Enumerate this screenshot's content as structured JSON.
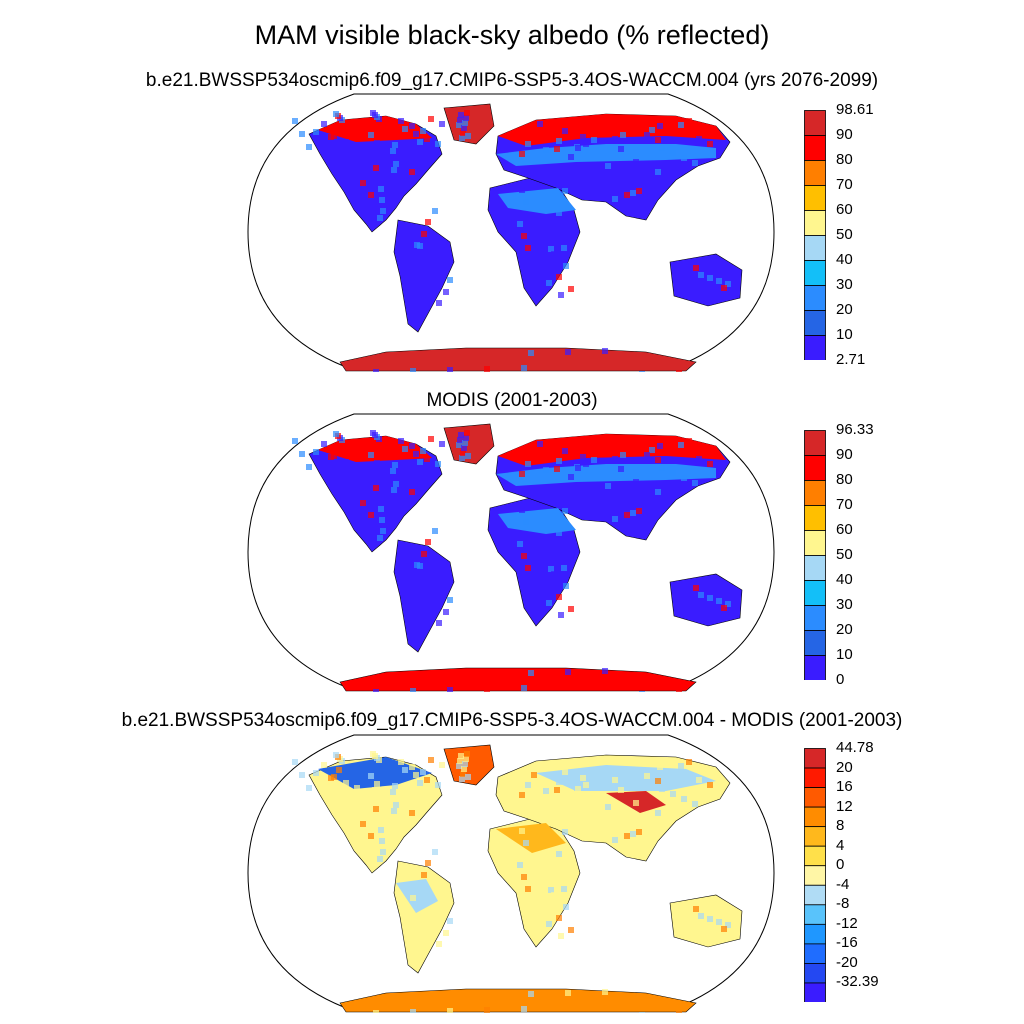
{
  "title": "MAM visible black-sky albedo (% reflected)",
  "panels": [
    {
      "id": "model",
      "subtitle": "b.e21.BWSSP534oscmip6.f09_g17.CMIP6-SSP5-3.4OS-WACCM.004 (yrs 2076-2099)",
      "colorbar": {
        "labels": [
          "98.61",
          "90",
          "80",
          "70",
          "60",
          "50",
          "40",
          "30",
          "20",
          "10",
          "2.71"
        ],
        "colors": [
          "#d62728",
          "#ff0000",
          "#ff7f00",
          "#ffbf00",
          "#fff68f",
          "#a6d8f5",
          "#13bff8",
          "#2b8cff",
          "#2565e5",
          "#3a1cff"
        ]
      }
    },
    {
      "id": "modis",
      "subtitle": "MODIS (2001-2003)",
      "colorbar": {
        "labels": [
          "96.33",
          "90",
          "80",
          "70",
          "60",
          "50",
          "40",
          "30",
          "20",
          "10",
          "0"
        ],
        "colors": [
          "#d62728",
          "#ff0000",
          "#ff7f00",
          "#ffbf00",
          "#fff68f",
          "#a6d8f5",
          "#13bff8",
          "#2b8cff",
          "#2565e5",
          "#3a1cff"
        ]
      }
    },
    {
      "id": "diff",
      "subtitle": "b.e21.BWSSP534oscmip6.f09_g17.CMIP6-SSP5-3.4OS-WACCM.004 - MODIS (2001-2003)",
      "colorbar": {
        "labels": [
          "44.78",
          "20",
          "16",
          "12",
          "8",
          "4",
          "0",
          "-4",
          "-8",
          "-12",
          "-16",
          "-20",
          "-32.39"
        ],
        "colors": [
          "#d62728",
          "#ff1a00",
          "#ff5a00",
          "#ff8c00",
          "#ffb81c",
          "#ffe04a",
          "#fff6a6",
          "#b0dcf5",
          "#59c3fb",
          "#1f97ff",
          "#1f6dff",
          "#2448f2",
          "#3a1cff"
        ]
      }
    }
  ]
}
